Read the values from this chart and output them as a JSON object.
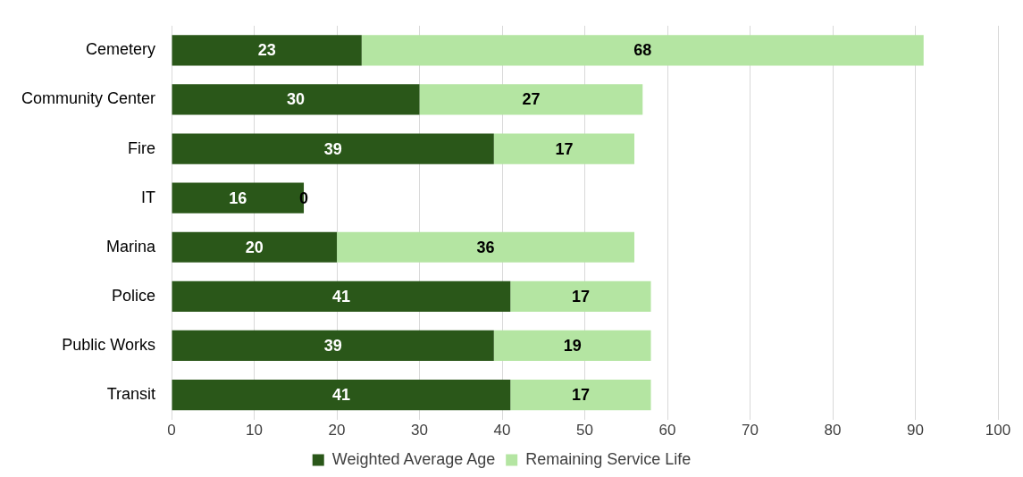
{
  "chart_data": {
    "type": "bar",
    "orientation": "horizontal",
    "stacked": true,
    "categories": [
      "Cemetery",
      "Community Center",
      "Fire",
      "IT",
      "Marina",
      "Police",
      "Public Works",
      "Transit"
    ],
    "series": [
      {
        "name": "Weighted Average Age",
        "color": "#2a5719",
        "values": [
          23,
          30,
          39,
          16,
          20,
          41,
          39,
          41
        ]
      },
      {
        "name": "Remaining Service Life",
        "color": "#b4e5a2",
        "values": [
          68,
          27,
          17,
          0,
          36,
          17,
          19,
          17
        ]
      }
    ],
    "xlim": [
      0,
      100
    ],
    "xticks": [
      0,
      10,
      20,
      30,
      40,
      50,
      60,
      70,
      80,
      90,
      100
    ],
    "grid": "x",
    "legend": "bottom",
    "data_labels": true
  }
}
